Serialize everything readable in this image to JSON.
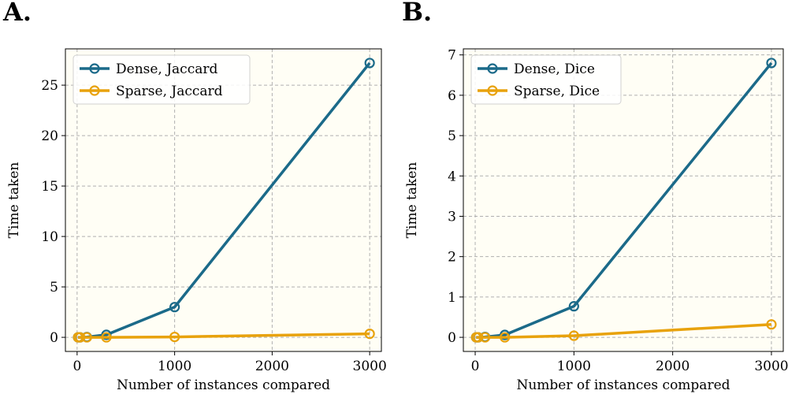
{
  "chart_data": [
    {
      "panel_label": "A.",
      "type": "line",
      "xlabel": "Number of instances compared",
      "ylabel": "Time taken",
      "xlim": [
        -120,
        3120
      ],
      "ylim": [
        -1.4,
        28.6
      ],
      "xticks": [
        0,
        1000,
        2000,
        3000
      ],
      "yticks": [
        0,
        5,
        10,
        15,
        20,
        25
      ],
      "grid": true,
      "legend_position": "top-left",
      "plot_background": "#fffef5",
      "series": [
        {
          "name": "Dense, Jaccard",
          "color": "#1b6a89",
          "x": [
            10,
            30,
            100,
            300,
            1000,
            3000
          ],
          "y": [
            0.0,
            0.0,
            0.03,
            0.25,
            3.0,
            27.2
          ]
        },
        {
          "name": "Sparse, Jaccard",
          "color": "#e8a20c",
          "x": [
            10,
            30,
            100,
            300,
            1000,
            3000
          ],
          "y": [
            0.0,
            0.0,
            0.0,
            0.0,
            0.04,
            0.35
          ]
        }
      ]
    },
    {
      "panel_label": "B.",
      "type": "line",
      "xlabel": "Number of instances compared",
      "ylabel": "Time taken",
      "xlim": [
        -120,
        3120
      ],
      "ylim": [
        -0.35,
        7.15
      ],
      "xticks": [
        0,
        1000,
        2000,
        3000
      ],
      "yticks": [
        0,
        1,
        2,
        3,
        4,
        5,
        6,
        7
      ],
      "grid": true,
      "legend_position": "top-left",
      "plot_background": "#fffef5",
      "series": [
        {
          "name": "Dense, Dice",
          "color": "#1b6a89",
          "x": [
            10,
            30,
            100,
            300,
            1000,
            3000
          ],
          "y": [
            0.0,
            0.0,
            0.01,
            0.06,
            0.77,
            6.8
          ]
        },
        {
          "name": "Sparse, Dice",
          "color": "#e8a20c",
          "x": [
            10,
            30,
            100,
            300,
            1000,
            3000
          ],
          "y": [
            0.0,
            0.0,
            0.0,
            0.0,
            0.04,
            0.32
          ]
        }
      ]
    }
  ]
}
